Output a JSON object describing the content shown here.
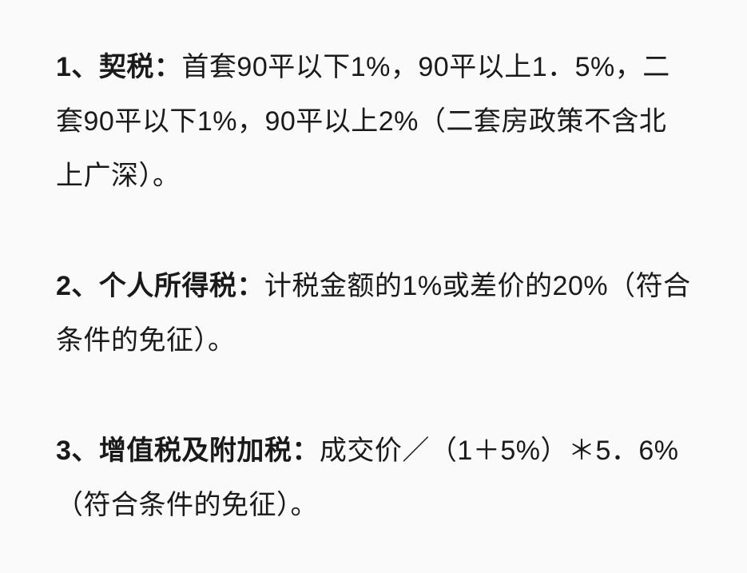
{
  "document": {
    "text_color": "#1a1a1a",
    "background_color": "#fafafa",
    "font_size_pt": 26,
    "line_height": 2.0,
    "label_font_weight": 700,
    "body_font_weight": 400,
    "items": [
      {
        "label": "1、契税：",
        "body": "首套90平以下1%，90平以上1．5%，二套90平以下1%，90平以上2%（二套房政策不含北上广深）。"
      },
      {
        "label": "2、个人所得税：",
        "body": "计税金额的1%或差价的20%（符合条件的免征）。"
      },
      {
        "label": "3、增值税及附加税：",
        "body": "成交价／（1＋5%）＊5．6%（符合条件的免征）。"
      }
    ]
  }
}
